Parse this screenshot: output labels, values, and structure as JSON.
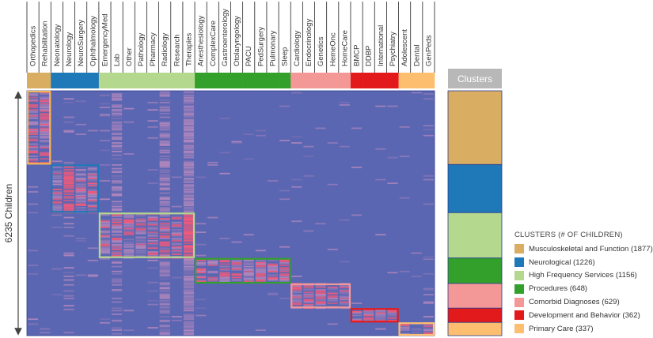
{
  "colors": {
    "heat_base": "#5b66b2",
    "heat_hot": "#f25a7a",
    "heat_warm": "#d996c2",
    "border": "#2b3a8c"
  },
  "chart_data": {
    "type": "heatmap",
    "ylabel": "6235 Children",
    "specialties": [
      {
        "name": "Orthopedics",
        "group": 0
      },
      {
        "name": "Rehabilitation",
        "group": 0
      },
      {
        "name": "Neonatology",
        "group": 1
      },
      {
        "name": "Neurology",
        "group": 1
      },
      {
        "name": "NeuroSurgery",
        "group": 1
      },
      {
        "name": "Ophthalmology",
        "group": 1
      },
      {
        "name": "EmergencyMed",
        "group": 2
      },
      {
        "name": "Lab",
        "group": 2
      },
      {
        "name": "Other",
        "group": 2
      },
      {
        "name": "Pathology",
        "group": 2
      },
      {
        "name": "Pharmacy",
        "group": 2
      },
      {
        "name": "Radiology",
        "group": 2
      },
      {
        "name": "Research",
        "group": 2
      },
      {
        "name": "Therapies",
        "group": 2
      },
      {
        "name": "Anesthesiology",
        "group": 3
      },
      {
        "name": "ComplexCare",
        "group": 3
      },
      {
        "name": "Gastroenterology",
        "group": 3
      },
      {
        "name": "Otolaryngology",
        "group": 3
      },
      {
        "name": "PACU",
        "group": 3
      },
      {
        "name": "PedSurgery",
        "group": 3
      },
      {
        "name": "Pulmonary",
        "group": 3
      },
      {
        "name": "Sleep",
        "group": 3
      },
      {
        "name": "Cardiology",
        "group": 4
      },
      {
        "name": "Endocrinology",
        "group": 4
      },
      {
        "name": "Genetics",
        "group": 4
      },
      {
        "name": "HemeOnc",
        "group": 4
      },
      {
        "name": "HomeCare",
        "group": 4
      },
      {
        "name": "BMCP",
        "group": 5
      },
      {
        "name": "DDBP",
        "group": 5
      },
      {
        "name": "International",
        "group": 5
      },
      {
        "name": "Psychiatry",
        "group": 5
      },
      {
        "name": "Adolescent",
        "group": 6
      },
      {
        "name": "Dental",
        "group": 6
      },
      {
        "name": "GenPeds",
        "group": 6
      }
    ],
    "clusters_header": "Clusters",
    "legend_title": "CLUSTERS (# OF CHILDREN)",
    "clusters": [
      {
        "label": "Musculoskeletal and Function (1877)",
        "count": 1877,
        "color": "#d9ad62",
        "box": "#f2b556"
      },
      {
        "label": "Neurological (1226)",
        "count": 1226,
        "color": "#1f78b8",
        "box": "#1f78b8"
      },
      {
        "label": "High Frequency Services (1156)",
        "count": 1156,
        "color": "#b3d88e",
        "box": "#b3d88e"
      },
      {
        "label": "Procedures (648)",
        "count": 648,
        "color": "#33a02c",
        "box": "#33a02c"
      },
      {
        "label": "Comorbid Diagnoses (629)",
        "count": 629,
        "color": "#f49897",
        "box": "#f49897"
      },
      {
        "label": "Development and Behavior (362)",
        "count": 362,
        "color": "#e31a1c",
        "box": "#e31a1c"
      },
      {
        "label": "Primary Care (337)",
        "count": 337,
        "color": "#fdbf6f",
        "box": "#fdbf6f"
      }
    ]
  }
}
